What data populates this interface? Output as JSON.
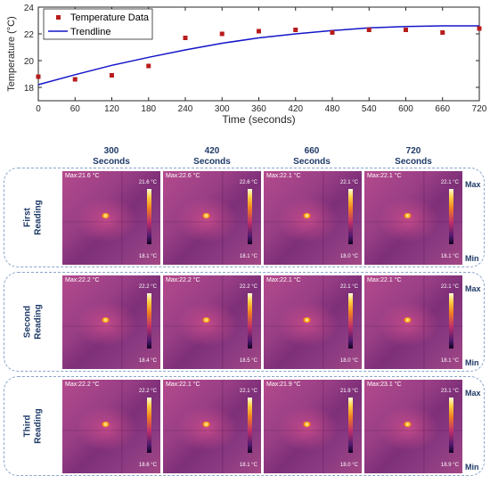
{
  "chart_data": {
    "type": "scatter",
    "xlabel": "Time (seconds)",
    "ylabel": "Temperature (°C)",
    "xlim": [
      0,
      720
    ],
    "ylim": [
      17,
      24
    ],
    "xticks": [
      0,
      60,
      120,
      180,
      240,
      300,
      360,
      420,
      480,
      540,
      600,
      660,
      720
    ],
    "yticks": [
      18,
      20,
      22,
      24
    ],
    "legend_position": "top-left",
    "series": [
      {
        "name": "Temperature Data",
        "kind": "markers",
        "color": "#b81c1c",
        "x": [
          0,
          60,
          120,
          180,
          240,
          300,
          360,
          420,
          480,
          540,
          600,
          660,
          720
        ],
        "y": [
          18.8,
          18.6,
          18.9,
          19.6,
          21.7,
          22.0,
          22.2,
          22.3,
          22.1,
          22.3,
          22.3,
          22.1,
          22.4
        ]
      },
      {
        "name": "Trendline",
        "kind": "line",
        "color": "#1515c8",
        "x": [
          0,
          60,
          120,
          180,
          240,
          300,
          360,
          420,
          480,
          540,
          600,
          660,
          720
        ],
        "y": [
          18.2,
          18.95,
          19.65,
          20.25,
          20.8,
          21.3,
          21.7,
          22.0,
          22.25,
          22.45,
          22.55,
          22.6,
          22.6
        ]
      }
    ]
  },
  "thermal_grid": {
    "columns": [
      "300\nSeconds",
      "420\nSeconds",
      "660\nSeconds",
      "720\nSeconds"
    ],
    "scale_max_label": "Max",
    "scale_min_label": "Min",
    "rows": [
      {
        "label": "First\nReading",
        "cells": [
          {
            "max_text": "Max:21.6 °C",
            "top": "21.6 °C",
            "bottom": "18.1 °C"
          },
          {
            "max_text": "Max:22.6 °C",
            "top": "22.6 °C",
            "bottom": "18.1 °C"
          },
          {
            "max_text": "Max:22.1 °C",
            "top": "22.1 °C",
            "bottom": "18.0 °C"
          },
          {
            "max_text": "Max:22.1 °C",
            "top": "22.1 °C",
            "bottom": "18.1 °C"
          }
        ]
      },
      {
        "label": "Second\nReading",
        "cells": [
          {
            "max_text": "Max:22.2 °C",
            "top": "22.2 °C",
            "bottom": "18.4 °C"
          },
          {
            "max_text": "Max:22.2 °C",
            "top": "22.2 °C",
            "bottom": "18.5 °C"
          },
          {
            "max_text": "Max:22.1 °C",
            "top": "22.1 °C",
            "bottom": "18.0 °C"
          },
          {
            "max_text": "Max:22.1 °C",
            "top": "22.1 °C",
            "bottom": "18.1 °C"
          }
        ]
      },
      {
        "label": "Third\nReading",
        "cells": [
          {
            "max_text": "Max:22.2 °C",
            "top": "22.2 °C",
            "bottom": "18.6 °C"
          },
          {
            "max_text": "Max:22.1 °C",
            "top": "22.1 °C",
            "bottom": "18.1 °C"
          },
          {
            "max_text": "Max:21.9 °C",
            "top": "21.9 °C",
            "bottom": "18.0 °C"
          },
          {
            "max_text": "Max:23.1 °C",
            "top": "23.1 °C",
            "bottom": "18.9 °C"
          }
        ]
      }
    ]
  }
}
